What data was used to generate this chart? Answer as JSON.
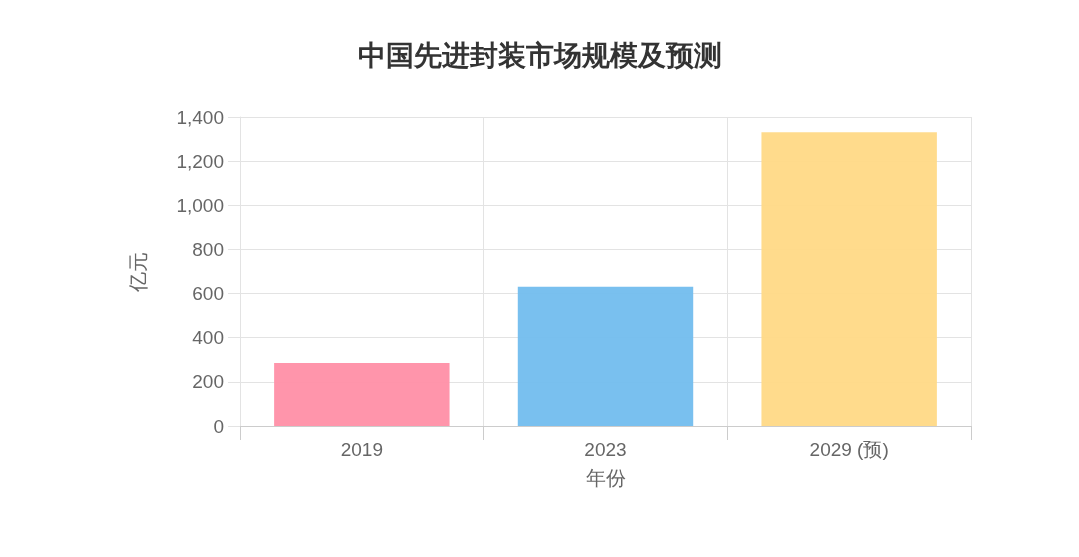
{
  "chart_data": {
    "type": "bar",
    "title": "中国先进封装市场规模及预测",
    "xlabel": "年份",
    "ylabel": "亿元",
    "categories": [
      "2019",
      "2023",
      "2029 (预)"
    ],
    "values": [
      285,
      631,
      1331
    ],
    "colors": [
      "#ff8fa6",
      "#72bdee",
      "#ffd986"
    ],
    "ylim": [
      0,
      1400
    ],
    "yticks": [
      0,
      200,
      400,
      600,
      800,
      {
        "value": 1000,
        "label": "1,000"
      },
      {
        "value": 1200,
        "label": "1,200"
      },
      {
        "value": 1400,
        "label": "1,400"
      }
    ],
    "grid": true
  }
}
